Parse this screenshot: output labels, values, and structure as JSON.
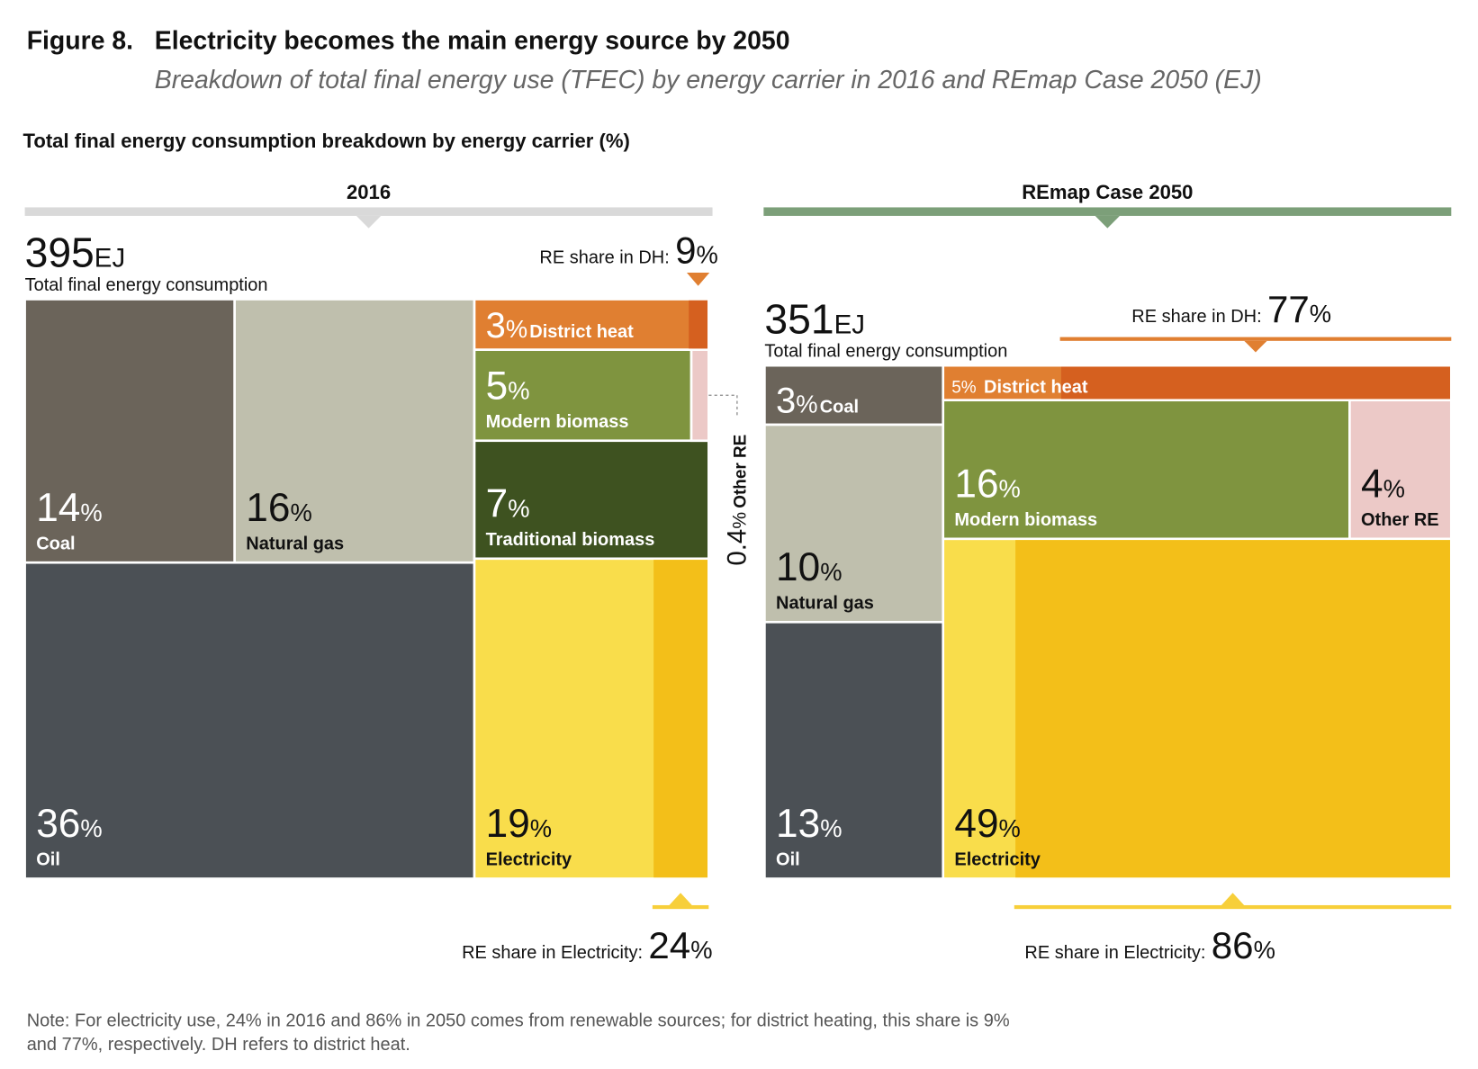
{
  "figure_label": "Figure 8.",
  "figure_title": "Electricity becomes the main energy source by 2050",
  "subtitle": "Breakdown of total final energy use (TFEC) by energy carrier in 2016 and REmap Case 2050 (EJ)",
  "heading": "Total final energy consumption breakdown by energy carrier (%)",
  "note": [
    "Note: For electricity use, 24% in 2016 and 86% in 2050 comes from renewable sources; for district heating, this share is 9%",
    "and 77%, respectively. DH refers to district heat."
  ],
  "chart_data": [
    {
      "type": "treemap",
      "title": "2016",
      "header_color": "#d9d9d9",
      "total": 395,
      "total_unit": "EJ",
      "total_label": "Total final energy consumption",
      "unit": "%",
      "categories": [
        "Coal",
        "Natural gas",
        "Oil",
        "District heat",
        "Modern biomass",
        "Traditional biomass",
        "Other RE",
        "Electricity"
      ],
      "values": [
        14,
        16,
        36,
        3,
        5,
        7,
        0.4,
        19
      ],
      "colors": [
        "#6b645a",
        "#bfbfad",
        "#4b5055",
        "#e07f31",
        "#7f943f",
        "#3e5220",
        "#ecc9c7",
        "#f9dd4b"
      ],
      "dh_share": {
        "label": "RE share in DH:",
        "value": 9,
        "color": "#d5601f"
      },
      "electricity_share": {
        "label": "RE share in Electricity:",
        "value": 24,
        "color": "#f3bf19"
      }
    },
    {
      "type": "treemap",
      "title": "REmap Case 2050",
      "header_color": "#7c9f79",
      "total": 351,
      "total_unit": "EJ",
      "total_label": "Total final energy consumption",
      "unit": "%",
      "categories": [
        "Coal",
        "Natural gas",
        "Oil",
        "District heat",
        "Modern biomass",
        "Other RE",
        "Electricity"
      ],
      "values": [
        3,
        10,
        13,
        5,
        16,
        4,
        49
      ],
      "colors": [
        "#6b645a",
        "#bfbfad",
        "#4b5055",
        "#e07f31",
        "#7f943f",
        "#ecc9c7",
        "#f9dd4b"
      ],
      "dh_share": {
        "label": "RE share in DH:",
        "value": 77,
        "color": "#d5601f"
      },
      "electricity_share": {
        "label": "RE share in Electricity:",
        "value": 86,
        "color": "#f3bf19"
      }
    }
  ]
}
